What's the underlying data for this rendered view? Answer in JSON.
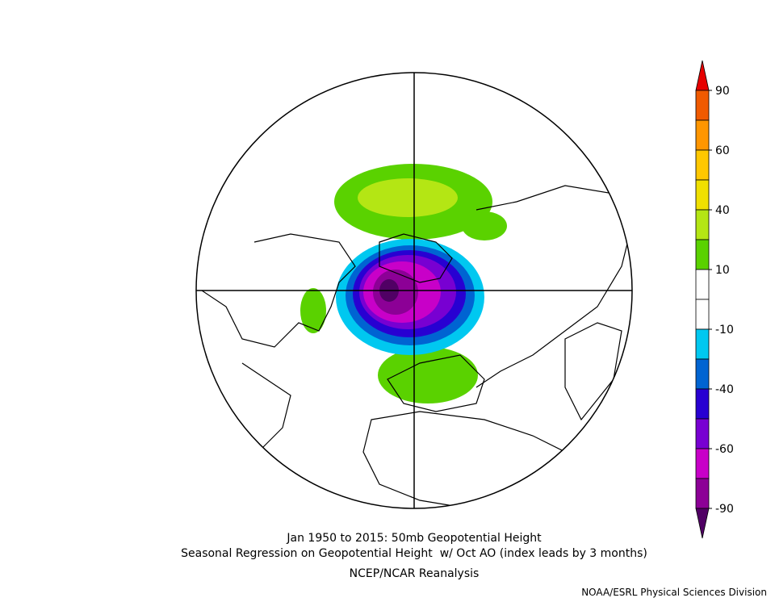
{
  "colorbar": {
    "labels": [
      90,
      60,
      40,
      10,
      -10,
      -40,
      -60,
      -90
    ],
    "colors": [
      "#e60000",
      "#f05a00",
      "#ff9600",
      "#ffc800",
      "#f0e000",
      "#b4e614",
      "#5ad200",
      "#ffffff",
      "#ffffff",
      "#00c8f0",
      "#0064d2",
      "#2800d2",
      "#7800d2",
      "#c800c8",
      "#8c0096",
      "#500064"
    ]
  },
  "title": {
    "line1": "Jan 1950 to 2015: 50mb Geopotential Height",
    "line2": "Seasonal Regression on Geopotential Height  w/ Oct AO (index leads by 3 months)",
    "line3": "NCEP/NCAR Reanalysis"
  },
  "credit": "NOAA/ESRL Physical Sciences Division"
}
